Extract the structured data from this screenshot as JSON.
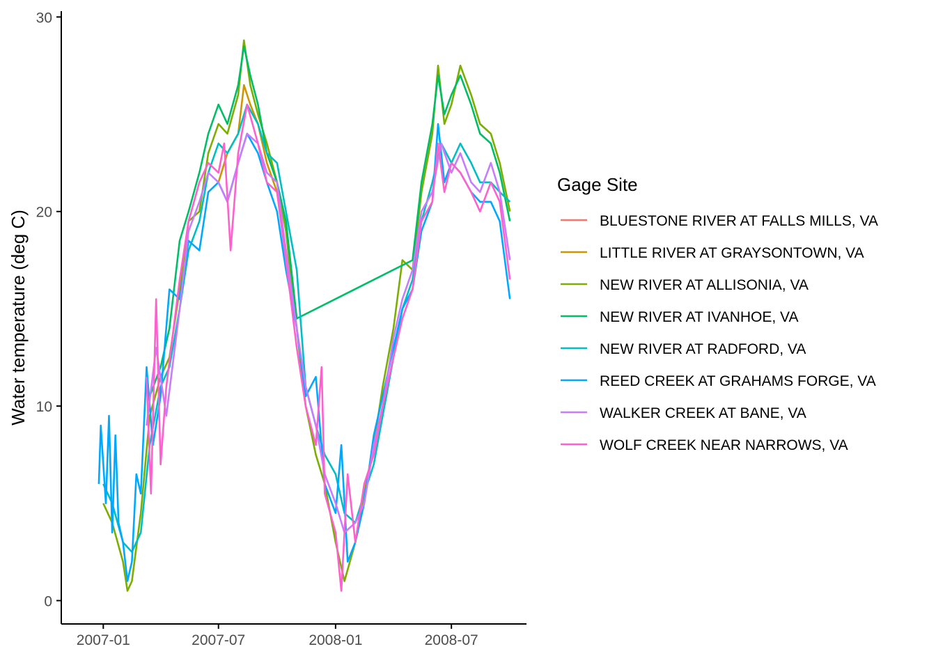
{
  "chart_data": {
    "type": "line",
    "title": "",
    "xlabel": "",
    "ylabel": "Water temperature (deg C)",
    "x_ticks": [
      "2007-01",
      "2007-07",
      "2008-01",
      "2008-07"
    ],
    "xlim": [
      "2006-10-27",
      "2008-10-27"
    ],
    "y_ticks": [
      0,
      10,
      20,
      30
    ],
    "ylim": [
      -1.2,
      30.3
    ],
    "grid": false,
    "legend": {
      "title": "Gage Site",
      "placement": "right"
    },
    "series": [
      {
        "name": "BLUESTONE RIVER AT FALLS MILLS, VA",
        "color": "#F8766D",
        "points": []
      },
      {
        "name": "LITTLE RIVER AT GRAYSONTOWN, VA",
        "color": "#CD9600",
        "points": [
          [
            "2007-07-01",
            21.5
          ],
          [
            "2007-07-15",
            23.0
          ],
          [
            "2007-08-01",
            24.0
          ],
          [
            "2007-08-10",
            26.5
          ],
          [
            "2007-08-20",
            25.5
          ],
          [
            "2007-09-01",
            24.5
          ],
          [
            "2007-09-15",
            22.5
          ],
          [
            "2007-10-01",
            21.0
          ],
          [
            "2007-10-15",
            18.0
          ],
          [
            "2007-11-01",
            14.5
          ]
        ]
      },
      {
        "name": "NEW RIVER AT ALLISONIA, VA",
        "color": "#7CAE00",
        "points": [
          [
            "2007-01-01",
            5.0
          ],
          [
            "2007-01-15",
            4.0
          ],
          [
            "2007-02-01",
            2.0
          ],
          [
            "2007-02-08",
            0.5
          ],
          [
            "2007-02-15",
            1.0
          ],
          [
            "2007-03-01",
            4.5
          ],
          [
            "2007-03-15",
            9.5
          ],
          [
            "2007-04-01",
            11.5
          ],
          [
            "2007-04-15",
            12.5
          ],
          [
            "2007-05-01",
            16.0
          ],
          [
            "2007-05-15",
            19.5
          ],
          [
            "2007-06-01",
            20.0
          ],
          [
            "2007-06-15",
            23.0
          ],
          [
            "2007-07-01",
            24.5
          ],
          [
            "2007-07-15",
            24.0
          ],
          [
            "2007-08-01",
            26.0
          ],
          [
            "2007-08-10",
            28.8
          ],
          [
            "2007-08-20",
            26.5
          ],
          [
            "2007-09-01",
            25.0
          ],
          [
            "2007-09-15",
            23.5
          ],
          [
            "2007-10-01",
            21.5
          ],
          [
            "2007-10-15",
            19.0
          ],
          [
            "2007-11-01",
            14.0
          ],
          [
            "2007-11-15",
            10.0
          ],
          [
            "2007-12-01",
            7.5
          ],
          [
            "2007-12-15",
            6.0
          ],
          [
            "2008-01-01",
            3.0
          ],
          [
            "2008-01-15",
            1.0
          ],
          [
            "2008-02-01",
            3.0
          ],
          [
            "2008-02-15",
            5.5
          ],
          [
            "2008-03-01",
            8.0
          ],
          [
            "2008-03-15",
            11.0
          ],
          [
            "2008-04-01",
            14.0
          ],
          [
            "2008-04-15",
            17.5
          ],
          [
            "2008-05-01",
            17.0
          ],
          [
            "2008-05-15",
            21.0
          ],
          [
            "2008-06-01",
            24.0
          ],
          [
            "2008-06-10",
            27.5
          ],
          [
            "2008-06-20",
            24.5
          ],
          [
            "2008-07-01",
            25.5
          ],
          [
            "2008-07-15",
            27.5
          ],
          [
            "2008-08-01",
            26.0
          ],
          [
            "2008-08-15",
            24.5
          ],
          [
            "2008-09-01",
            24.0
          ],
          [
            "2008-09-15",
            22.5
          ],
          [
            "2008-10-01",
            20.0
          ]
        ]
      },
      {
        "name": "NEW RIVER AT IVANHOE, VA",
        "color": "#00BE67",
        "points": [
          [
            "2007-03-15",
            10.5
          ],
          [
            "2007-04-01",
            12.0
          ],
          [
            "2007-04-15",
            14.0
          ],
          [
            "2007-05-01",
            18.5
          ],
          [
            "2007-05-15",
            20.0
          ],
          [
            "2007-06-01",
            22.0
          ],
          [
            "2007-06-15",
            24.0
          ],
          [
            "2007-07-01",
            25.5
          ],
          [
            "2007-07-15",
            24.5
          ],
          [
            "2007-08-01",
            26.5
          ],
          [
            "2007-08-10",
            28.5
          ],
          [
            "2007-08-20",
            27.0
          ],
          [
            "2007-09-01",
            25.5
          ],
          [
            "2007-09-15",
            23.0
          ],
          [
            "2007-10-01",
            21.5
          ],
          [
            "2007-10-15",
            19.5
          ],
          [
            "2007-11-01",
            14.5
          ],
          [
            "2008-05-01",
            17.5
          ],
          [
            "2008-05-15",
            21.5
          ],
          [
            "2008-06-01",
            24.5
          ],
          [
            "2008-06-10",
            27.0
          ],
          [
            "2008-06-20",
            25.0
          ],
          [
            "2008-07-01",
            26.0
          ],
          [
            "2008-07-15",
            27.0
          ],
          [
            "2008-08-01",
            25.5
          ],
          [
            "2008-08-15",
            24.0
          ],
          [
            "2008-09-01",
            23.5
          ],
          [
            "2008-09-15",
            22.0
          ],
          [
            "2008-10-01",
            19.5
          ]
        ]
      },
      {
        "name": "NEW RIVER AT RADFORD, VA",
        "color": "#00BFC4",
        "points": [
          [
            "2007-01-01",
            6.0
          ],
          [
            "2007-01-15",
            5.0
          ],
          [
            "2007-02-01",
            3.0
          ],
          [
            "2007-02-15",
            2.5
          ],
          [
            "2007-03-01",
            3.5
          ],
          [
            "2007-03-15",
            8.0
          ],
          [
            "2007-04-01",
            11.0
          ],
          [
            "2007-04-15",
            12.0
          ],
          [
            "2007-05-01",
            15.0
          ],
          [
            "2007-05-15",
            18.0
          ],
          [
            "2007-06-01",
            19.5
          ],
          [
            "2007-06-15",
            22.0
          ],
          [
            "2007-07-01",
            23.5
          ],
          [
            "2007-07-15",
            23.0
          ],
          [
            "2007-08-01",
            24.0
          ],
          [
            "2007-08-15",
            25.5
          ],
          [
            "2007-09-01",
            24.5
          ],
          [
            "2007-09-15",
            23.0
          ],
          [
            "2007-10-01",
            22.5
          ],
          [
            "2007-10-15",
            20.0
          ],
          [
            "2007-11-01",
            17.0
          ],
          [
            "2007-11-15",
            11.0
          ],
          [
            "2007-12-01",
            9.0
          ],
          [
            "2007-12-15",
            7.5
          ],
          [
            "2008-01-01",
            6.5
          ],
          [
            "2008-01-15",
            4.5
          ],
          [
            "2008-02-01",
            4.0
          ],
          [
            "2008-02-15",
            5.5
          ],
          [
            "2008-03-01",
            7.0
          ],
          [
            "2008-03-15",
            9.5
          ],
          [
            "2008-04-01",
            12.5
          ],
          [
            "2008-04-15",
            15.0
          ],
          [
            "2008-05-01",
            16.5
          ],
          [
            "2008-05-15",
            19.5
          ],
          [
            "2008-06-01",
            21.5
          ],
          [
            "2008-06-15",
            23.5
          ],
          [
            "2008-07-01",
            22.5
          ],
          [
            "2008-07-15",
            23.5
          ],
          [
            "2008-08-01",
            22.5
          ],
          [
            "2008-08-15",
            21.5
          ],
          [
            "2008-09-01",
            21.5
          ],
          [
            "2008-09-15",
            21.0
          ],
          [
            "2008-10-01",
            20.5
          ]
        ]
      },
      {
        "name": "REED CREEK AT GRAHAMS FORGE, VA",
        "color": "#00A9FF",
        "points": [
          [
            "2006-12-25",
            6.0
          ],
          [
            "2006-12-28",
            9.0
          ],
          [
            "2007-01-05",
            5.0
          ],
          [
            "2007-01-10",
            9.5
          ],
          [
            "2007-01-15",
            3.5
          ],
          [
            "2007-01-20",
            8.5
          ],
          [
            "2007-01-25",
            4.0
          ],
          [
            "2007-02-01",
            3.0
          ],
          [
            "2007-02-08",
            1.0
          ],
          [
            "2007-02-15",
            2.0
          ],
          [
            "2007-02-22",
            6.5
          ],
          [
            "2007-03-01",
            5.5
          ],
          [
            "2007-03-10",
            12.0
          ],
          [
            "2007-03-20",
            8.0
          ],
          [
            "2007-04-01",
            10.5
          ],
          [
            "2007-04-15",
            16.0
          ],
          [
            "2007-05-01",
            15.5
          ],
          [
            "2007-05-15",
            18.5
          ],
          [
            "2007-06-01",
            18.0
          ],
          [
            "2007-06-15",
            21.0
          ],
          [
            "2007-07-01",
            21.5
          ],
          [
            "2007-07-15",
            20.5
          ],
          [
            "2007-08-01",
            22.5
          ],
          [
            "2007-08-15",
            24.0
          ],
          [
            "2007-09-01",
            23.0
          ],
          [
            "2007-09-15",
            21.5
          ],
          [
            "2007-10-01",
            20.0
          ],
          [
            "2007-10-15",
            17.0
          ],
          [
            "2007-11-01",
            14.0
          ],
          [
            "2007-11-15",
            10.5
          ],
          [
            "2007-12-01",
            11.5
          ],
          [
            "2007-12-15",
            6.0
          ],
          [
            "2008-01-01",
            4.5
          ],
          [
            "2008-01-10",
            8.0
          ],
          [
            "2008-01-20",
            2.0
          ],
          [
            "2008-02-01",
            3.0
          ],
          [
            "2008-02-15",
            5.0
          ],
          [
            "2008-03-01",
            8.5
          ],
          [
            "2008-03-15",
            10.5
          ],
          [
            "2008-04-01",
            13.0
          ],
          [
            "2008-04-15",
            15.0
          ],
          [
            "2008-05-01",
            16.0
          ],
          [
            "2008-05-15",
            19.0
          ],
          [
            "2008-06-01",
            20.5
          ],
          [
            "2008-06-10",
            24.5
          ],
          [
            "2008-06-20",
            21.5
          ],
          [
            "2008-07-01",
            22.5
          ],
          [
            "2008-07-15",
            22.0
          ],
          [
            "2008-08-01",
            21.0
          ],
          [
            "2008-08-15",
            20.5
          ],
          [
            "2008-09-01",
            20.5
          ],
          [
            "2008-09-15",
            19.5
          ],
          [
            "2008-10-01",
            15.5
          ]
        ]
      },
      {
        "name": "WALKER CREEK AT BANE, VA",
        "color": "#C77CFF",
        "points": [
          [
            "2007-03-10",
            9.0
          ],
          [
            "2007-03-25",
            13.0
          ],
          [
            "2007-04-10",
            9.5
          ],
          [
            "2007-05-01",
            15.0
          ],
          [
            "2007-05-15",
            19.0
          ],
          [
            "2007-06-01",
            20.5
          ],
          [
            "2007-06-15",
            22.0
          ],
          [
            "2007-07-01",
            21.5
          ],
          [
            "2007-07-15",
            20.5
          ],
          [
            "2007-08-01",
            22.5
          ],
          [
            "2007-08-15",
            24.0
          ],
          [
            "2007-09-01",
            23.5
          ],
          [
            "2007-09-15",
            22.0
          ],
          [
            "2007-10-01",
            21.5
          ],
          [
            "2007-10-15",
            18.0
          ],
          [
            "2007-11-01",
            14.0
          ],
          [
            "2007-11-15",
            11.0
          ],
          [
            "2007-12-01",
            9.0
          ],
          [
            "2007-12-15",
            6.5
          ],
          [
            "2008-01-01",
            5.0
          ],
          [
            "2008-01-15",
            3.5
          ],
          [
            "2008-02-01",
            4.0
          ],
          [
            "2008-02-15",
            5.0
          ],
          [
            "2008-03-01",
            8.0
          ],
          [
            "2008-03-15",
            10.0
          ],
          [
            "2008-04-01",
            13.5
          ],
          [
            "2008-04-15",
            15.5
          ],
          [
            "2008-05-01",
            17.0
          ],
          [
            "2008-05-15",
            20.0
          ],
          [
            "2008-06-01",
            21.0
          ],
          [
            "2008-06-15",
            23.5
          ],
          [
            "2008-07-01",
            22.0
          ],
          [
            "2008-07-15",
            23.0
          ],
          [
            "2008-08-01",
            21.5
          ],
          [
            "2008-08-15",
            21.0
          ],
          [
            "2008-09-01",
            22.5
          ],
          [
            "2008-09-15",
            21.0
          ],
          [
            "2008-10-01",
            17.5
          ]
        ]
      },
      {
        "name": "WOLF CREEK NEAR NARROWS, VA",
        "color": "#FF61CC",
        "points": [
          [
            "2007-03-10",
            11.5
          ],
          [
            "2007-03-17",
            5.5
          ],
          [
            "2007-03-25",
            15.5
          ],
          [
            "2007-04-01",
            7.0
          ],
          [
            "2007-04-10",
            11.0
          ],
          [
            "2007-05-01",
            16.5
          ],
          [
            "2007-05-15",
            19.5
          ],
          [
            "2007-06-01",
            21.5
          ],
          [
            "2007-06-15",
            22.5
          ],
          [
            "2007-07-01",
            22.0
          ],
          [
            "2007-07-10",
            23.5
          ],
          [
            "2007-07-20",
            18.0
          ],
          [
            "2007-08-01",
            23.0
          ],
          [
            "2007-08-15",
            25.5
          ],
          [
            "2007-09-01",
            23.5
          ],
          [
            "2007-09-15",
            21.5
          ],
          [
            "2007-10-01",
            21.0
          ],
          [
            "2007-10-15",
            17.5
          ],
          [
            "2007-11-01",
            13.0
          ],
          [
            "2007-11-15",
            10.0
          ],
          [
            "2007-12-01",
            8.0
          ],
          [
            "2007-12-10",
            12.0
          ],
          [
            "2007-12-15",
            5.5
          ],
          [
            "2008-01-01",
            3.5
          ],
          [
            "2008-01-10",
            0.5
          ],
          [
            "2008-01-20",
            6.5
          ],
          [
            "2008-02-01",
            3.0
          ],
          [
            "2008-02-15",
            6.0
          ],
          [
            "2008-03-01",
            7.5
          ],
          [
            "2008-03-15",
            10.0
          ],
          [
            "2008-04-01",
            12.5
          ],
          [
            "2008-04-15",
            14.5
          ],
          [
            "2008-05-01",
            16.0
          ],
          [
            "2008-05-15",
            19.5
          ],
          [
            "2008-06-01",
            20.5
          ],
          [
            "2008-06-10",
            23.5
          ],
          [
            "2008-06-20",
            21.0
          ],
          [
            "2008-07-01",
            22.5
          ],
          [
            "2008-07-15",
            22.0
          ],
          [
            "2008-08-01",
            21.0
          ],
          [
            "2008-08-15",
            20.0
          ],
          [
            "2008-09-01",
            21.5
          ],
          [
            "2008-09-15",
            20.5
          ],
          [
            "2008-10-01",
            16.5
          ]
        ]
      }
    ]
  }
}
